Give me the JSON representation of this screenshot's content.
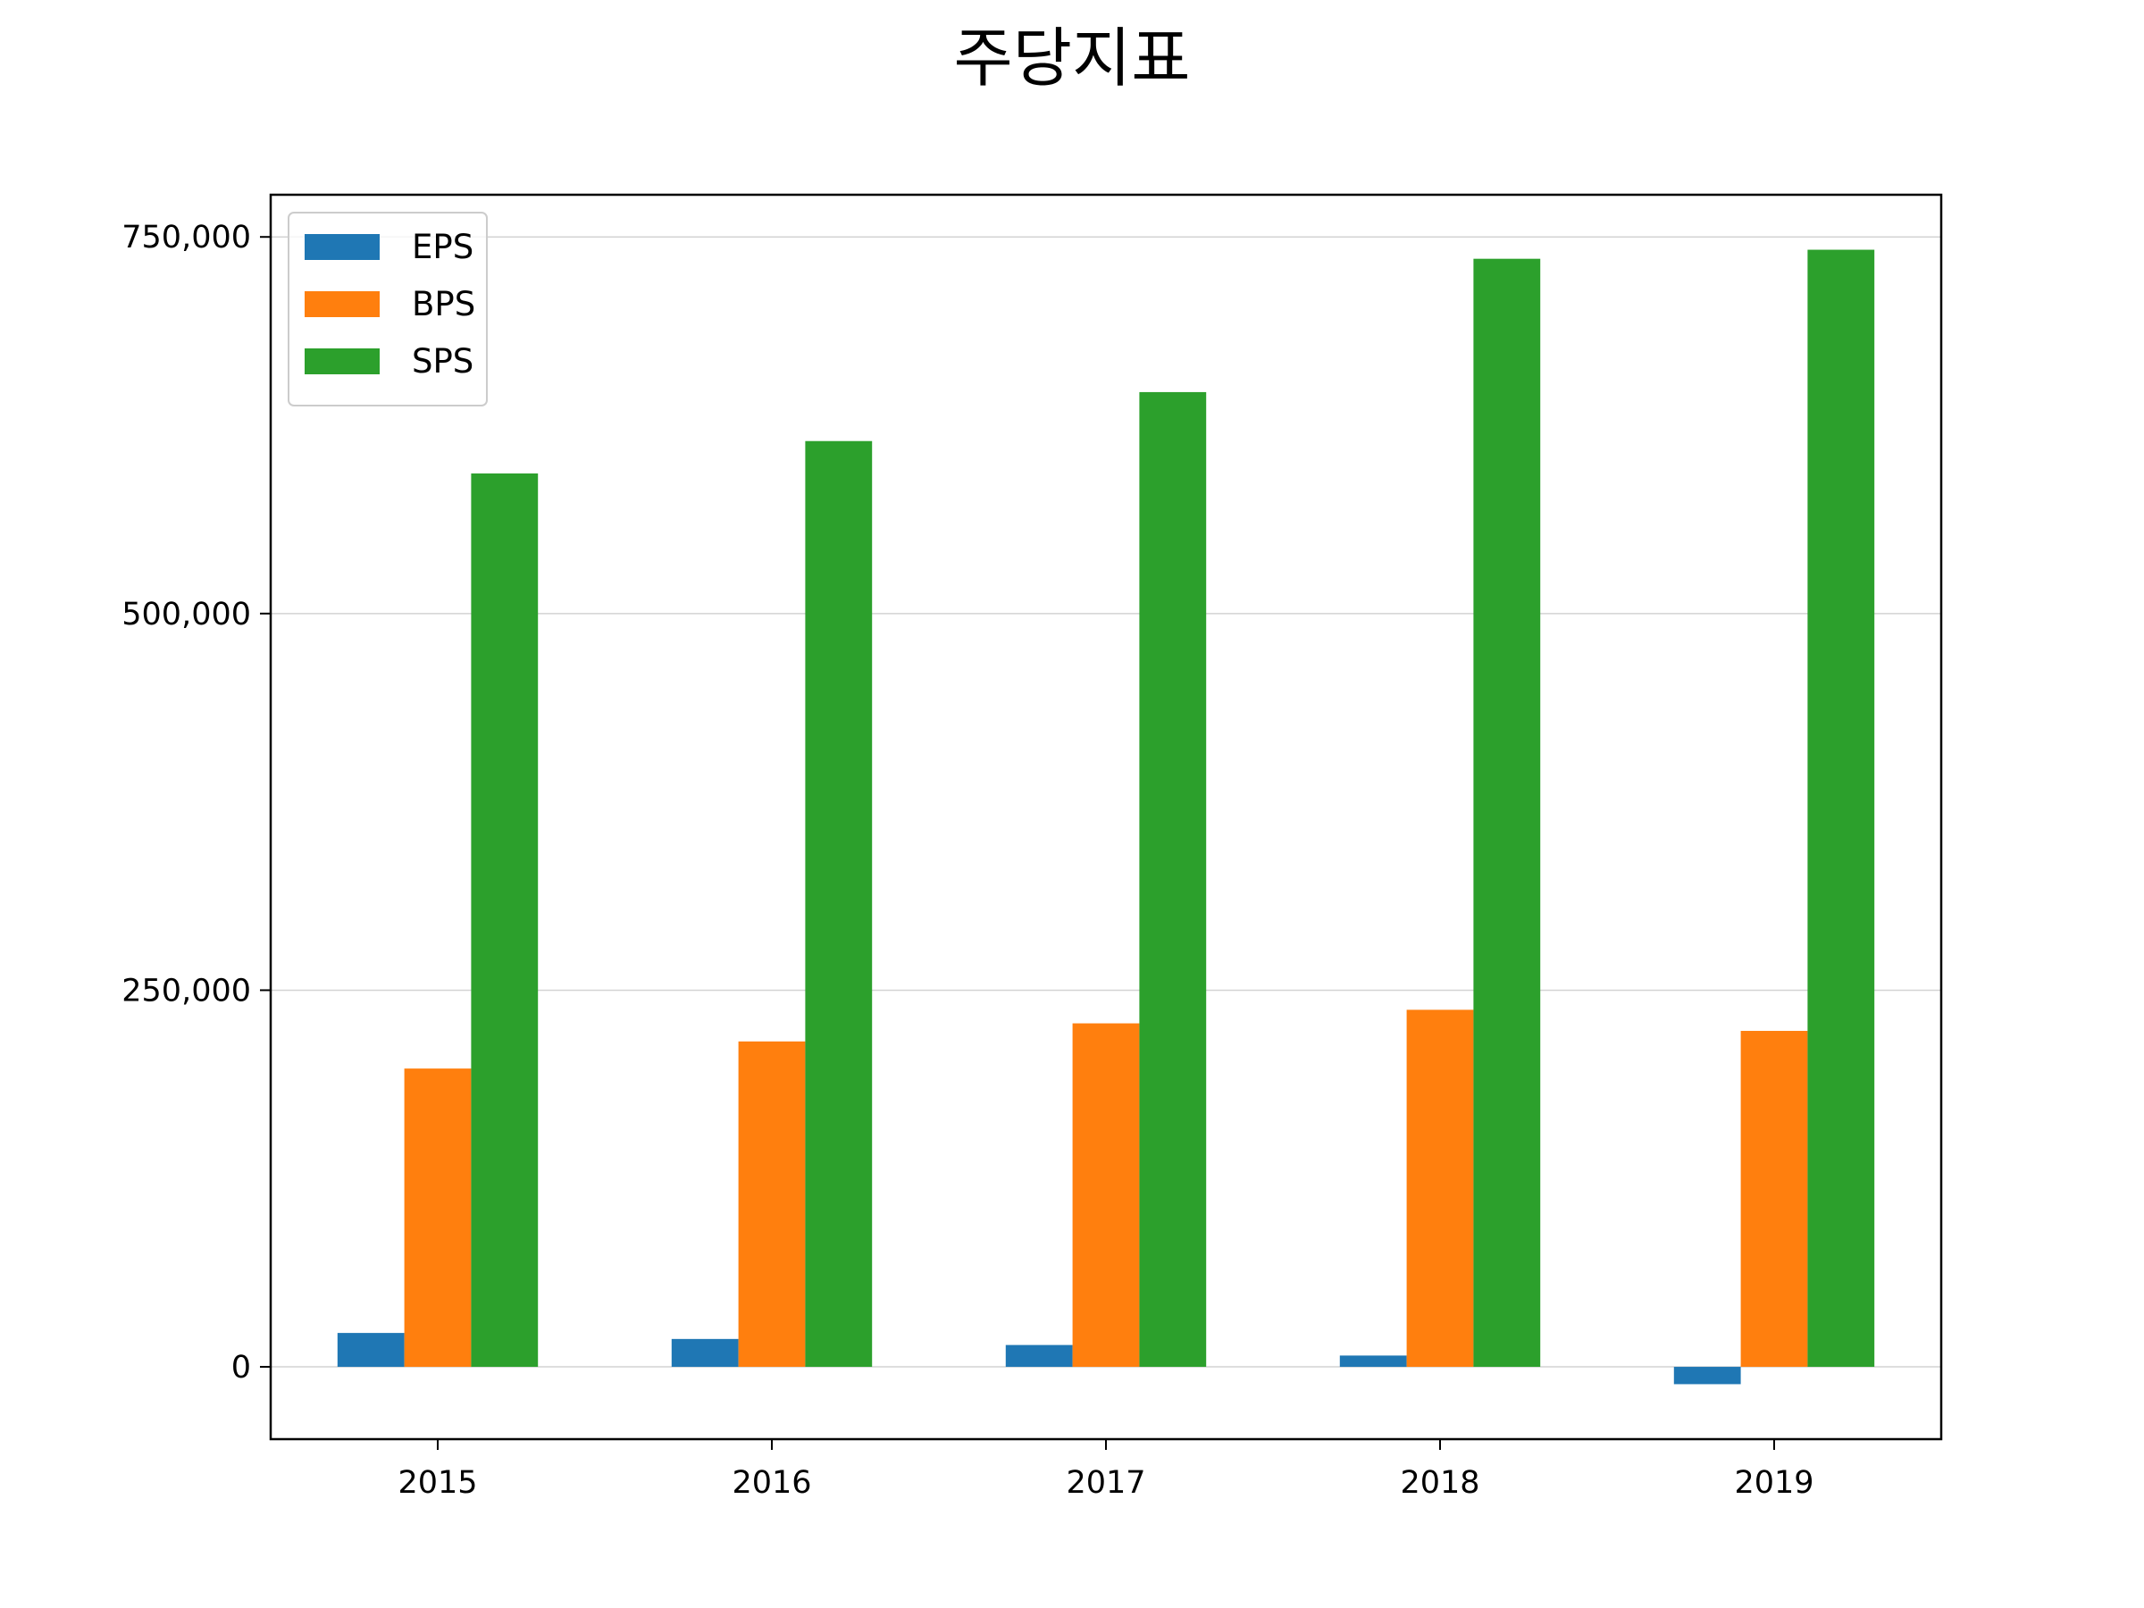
{
  "chart_data": {
    "type": "bar",
    "title": "주당지표",
    "xlabel": "",
    "ylabel": "",
    "categories": [
      "2015",
      "2016",
      "2017",
      "2018",
      "2019"
    ],
    "series": [
      {
        "name": "EPS",
        "color": "#1f77b4",
        "values": [
          22500,
          18500,
          14500,
          7500,
          -11500
        ]
      },
      {
        "name": "BPS",
        "color": "#ff7f0e",
        "values": [
          198000,
          216000,
          228000,
          237000,
          223000
        ]
      },
      {
        "name": "SPS",
        "color": "#2ca02c",
        "values": [
          593000,
          614500,
          647000,
          735500,
          741500
        ]
      }
    ],
    "ylim": [
      -48000,
      778000
    ],
    "yticks": [
      0,
      250000,
      500000,
      750000
    ],
    "ytick_labels": [
      "0",
      "250,000",
      "500,000",
      "750,000"
    ],
    "grid": {
      "y": true,
      "x": false
    },
    "legend_position": "top-left"
  }
}
